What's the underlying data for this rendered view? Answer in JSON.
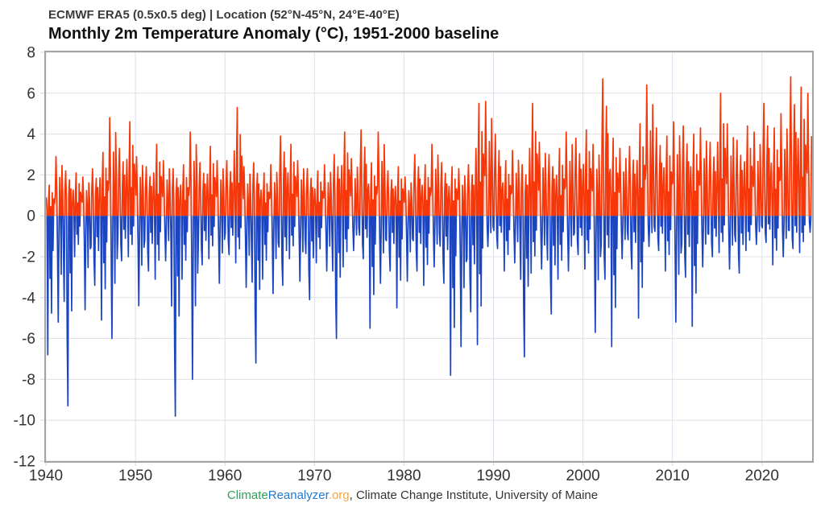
{
  "header": {
    "subtitle": "ECMWF ERA5 (0.5x0.5 deg) | Location (52°N-45°N, 24°E-40°E)",
    "title": "Monthly 2m Temperature Anomaly (°C), 1951-2000 baseline"
  },
  "footer": {
    "link_parts": [
      {
        "text": "Climate",
        "color": "#2f9e5b"
      },
      {
        "text": "Reanalyzer",
        "color": "#2478cf"
      },
      {
        "text": ".org",
        "color": "#f9a43f"
      }
    ],
    "suffix": ", Climate Change Institute, University of Maine"
  },
  "chart_data": {
    "type": "line",
    "title": "Monthly 2m Temperature Anomaly (°C), 1951-2000 baseline",
    "subtitle": "ECMWF ERA5 (0.5x0.5 deg) | Location (52°N-45°N, 24°E-40°E)",
    "series_name": "2m temperature anomaly (°C), monthly",
    "resolution": "monthly",
    "xlim": [
      1940,
      2025.6
    ],
    "ylim": [
      -12,
      8
    ],
    "x_ticks": [
      1940,
      1950,
      1960,
      1970,
      1980,
      1990,
      2000,
      2010,
      2020
    ],
    "y_ticks": [
      8,
      6,
      4,
      2,
      0,
      -2,
      -4,
      -6,
      -8,
      -10,
      -12
    ],
    "grid": true,
    "legend": false,
    "last_year_months": 7,
    "colors": {
      "positive_line": "#f5370a",
      "negative_line": "#1a44c0",
      "positive_fill": "rgba(245,55,10,0.22)",
      "negative_fill": "rgba(26,68,192,0.22)",
      "h_gridline": "#e0e0e0",
      "v_gridline": "#d8e0ef",
      "tick_mark": "#ccd6eb",
      "plot_border": "#a3a3a3",
      "label": "#333333"
    },
    "annual_extremes_format": "[year, annual max anomaly °C, annual min anomaly °C]",
    "annual_extremes": [
      [
        1940,
        1.5,
        -6.8
      ],
      [
        1941,
        2.9,
        -5.2
      ],
      [
        1942,
        2.2,
        -9.3
      ],
      [
        1943,
        2.1,
        -2.0
      ],
      [
        1944,
        1.9,
        -4.6
      ],
      [
        1945,
        2.3,
        -3.4
      ],
      [
        1946,
        3.1,
        -5.1
      ],
      [
        1947,
        4.8,
        -6.0
      ],
      [
        1948,
        3.3,
        -2.2
      ],
      [
        1949,
        4.6,
        -2.0
      ],
      [
        1950,
        2.9,
        -4.4
      ],
      [
        1951,
        2.4,
        -2.7
      ],
      [
        1952,
        3.5,
        -3.1
      ],
      [
        1953,
        2.7,
        -2.2
      ],
      [
        1954,
        2.3,
        -9.8
      ],
      [
        1955,
        2.5,
        -3.1
      ],
      [
        1956,
        4.1,
        -8.0
      ],
      [
        1957,
        2.6,
        -2.4
      ],
      [
        1958,
        3.4,
        -2.1
      ],
      [
        1959,
        2.7,
        -3.3
      ],
      [
        1960,
        2.7,
        -1.9
      ],
      [
        1961,
        5.3,
        -2.3
      ],
      [
        1962,
        2.4,
        -3.5
      ],
      [
        1963,
        2.6,
        -7.2
      ],
      [
        1964,
        2.1,
        -3.1
      ],
      [
        1965,
        2.5,
        -3.8
      ],
      [
        1966,
        3.9,
        -3.4
      ],
      [
        1967,
        3.5,
        -2.1
      ],
      [
        1968,
        2.7,
        -3.2
      ],
      [
        1969,
        2.3,
        -4.1
      ],
      [
        1970,
        2.2,
        -2.3
      ],
      [
        1971,
        2.5,
        -2.7
      ],
      [
        1972,
        3.0,
        -6.0
      ],
      [
        1973,
        4.1,
        -2.5
      ],
      [
        1974,
        2.8,
        -1.7
      ],
      [
        1975,
        4.2,
        -2.1
      ],
      [
        1976,
        2.6,
        -5.5
      ],
      [
        1977,
        4.1,
        -3.3
      ],
      [
        1978,
        2.2,
        -2.7
      ],
      [
        1979,
        2.4,
        -4.5
      ],
      [
        1980,
        1.9,
        -3.2
      ],
      [
        1981,
        3.0,
        -2.7
      ],
      [
        1982,
        2.5,
        -3.4
      ],
      [
        1983,
        3.5,
        -2.5
      ],
      [
        1984,
        2.6,
        -3.3
      ],
      [
        1985,
        2.4,
        -7.8
      ],
      [
        1986,
        2.3,
        -6.4
      ],
      [
        1987,
        2.5,
        -4.7
      ],
      [
        1988,
        5.5,
        -6.3
      ],
      [
        1989,
        5.6,
        -1.5
      ],
      [
        1990,
        4.0,
        -1.6
      ],
      [
        1991,
        2.7,
        -2.7
      ],
      [
        1992,
        3.2,
        -2.3
      ],
      [
        1993,
        2.5,
        -6.9
      ],
      [
        1994,
        5.5,
        -2.8
      ],
      [
        1995,
        3.6,
        -2.6
      ],
      [
        1996,
        3.0,
        -4.8
      ],
      [
        1997,
        3.3,
        -3.1
      ],
      [
        1998,
        4.1,
        -2.7
      ],
      [
        1999,
        3.8,
        -1.9
      ],
      [
        2000,
        4.2,
        -2.6
      ],
      [
        2001,
        3.5,
        -5.7
      ],
      [
        2002,
        6.7,
        -3.1
      ],
      [
        2003,
        3.8,
        -6.4
      ],
      [
        2004,
        3.3,
        -2.1
      ],
      [
        2005,
        3.4,
        -2.6
      ],
      [
        2006,
        4.5,
        -5.0
      ],
      [
        2007,
        6.4,
        -1.5
      ],
      [
        2008,
        4.3,
        -1.7
      ],
      [
        2009,
        3.9,
        -2.7
      ],
      [
        2010,
        4.6,
        -5.2
      ],
      [
        2011,
        4.4,
        -3.0
      ],
      [
        2012,
        4.0,
        -5.4
      ],
      [
        2013,
        4.3,
        -2.5
      ],
      [
        2014,
        3.6,
        -2.0
      ],
      [
        2015,
        6.0,
        -1.8
      ],
      [
        2016,
        4.5,
        -2.6
      ],
      [
        2017,
        3.7,
        -2.8
      ],
      [
        2018,
        4.4,
        -1.7
      ],
      [
        2019,
        4.1,
        -1.4
      ],
      [
        2020,
        5.5,
        -1.3
      ],
      [
        2021,
        4.3,
        -2.4
      ],
      [
        2022,
        5.0,
        -2.0
      ],
      [
        2023,
        6.8,
        -1.6
      ],
      [
        2024,
        6.3,
        -1.8
      ],
      [
        2025,
        6.0,
        -0.8
      ]
    ]
  }
}
